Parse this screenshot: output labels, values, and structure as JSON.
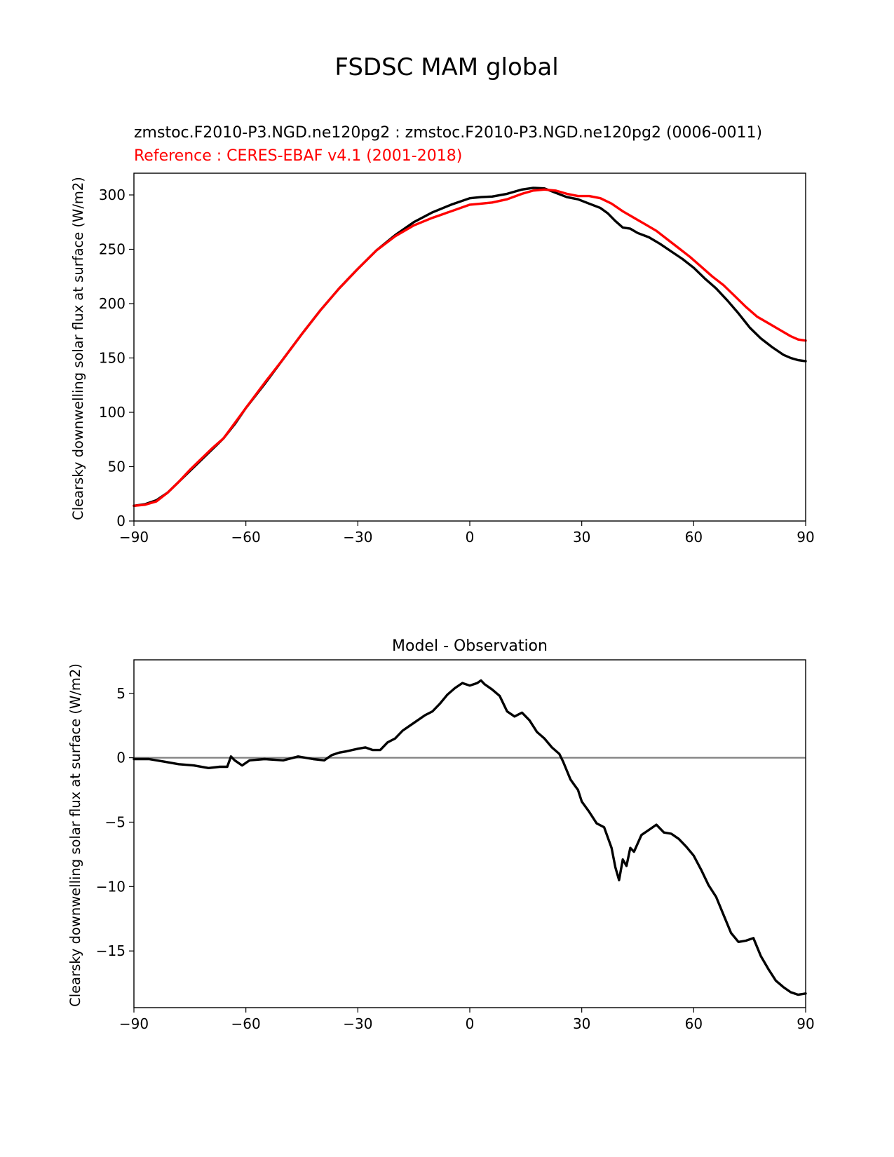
{
  "figure": {
    "title": "FSDSC MAM global"
  },
  "chart_data": [
    {
      "type": "line",
      "title_test": "zmstoc.F2010-P3.NGD.ne120pg2 : zmstoc.F2010-P3.NGD.ne120pg2 (0006-0011)",
      "title_reference": "Reference : CERES-EBAF v4.1 (2001-2018)",
      "xlabel": "",
      "ylabel": "Clearsky downwelling solar flux at surface (W/m2)",
      "xlim": [
        -90,
        90
      ],
      "ylim": [
        0,
        320
      ],
      "xticks": [
        -90,
        -60,
        -30,
        0,
        30,
        60,
        90
      ],
      "xtick_labels": [
        "−90",
        "−60",
        "−30",
        "0",
        "30",
        "60",
        "90"
      ],
      "yticks": [
        0,
        50,
        100,
        150,
        200,
        250,
        300
      ],
      "ytick_labels": [
        "0",
        "50",
        "100",
        "150",
        "200",
        "250",
        "300"
      ],
      "grid": false,
      "colors": {
        "test": "#000000",
        "reference": "#ff0000"
      },
      "series": [
        {
          "role": "test",
          "color": "#000000",
          "points": [
            [
              -90,
              14
            ],
            [
              -87,
              15.5
            ],
            [
              -84,
              19
            ],
            [
              -81,
              26
            ],
            [
              -78,
              36
            ],
            [
              -75,
              46
            ],
            [
              -72,
              56
            ],
            [
              -69,
              66
            ],
            [
              -66,
              76
            ],
            [
              -63,
              89
            ],
            [
              -60,
              104
            ],
            [
              -55,
              126
            ],
            [
              -50,
              149
            ],
            [
              -45,
              172
            ],
            [
              -40,
              194
            ],
            [
              -35,
              214
            ],
            [
              -30,
              232
            ],
            [
              -25,
              249
            ],
            [
              -20,
              263
            ],
            [
              -15,
              275
            ],
            [
              -10,
              284
            ],
            [
              -5,
              291
            ],
            [
              0,
              297
            ],
            [
              3,
              298
            ],
            [
              6,
              298.5
            ],
            [
              10,
              301
            ],
            [
              14,
              305
            ],
            [
              17,
              306.5
            ],
            [
              20,
              306
            ],
            [
              23,
              302
            ],
            [
              26,
              298
            ],
            [
              29,
              296
            ],
            [
              32,
              292
            ],
            [
              35,
              288
            ],
            [
              37,
              283
            ],
            [
              39,
              276
            ],
            [
              41,
              270
            ],
            [
              43,
              269
            ],
            [
              45,
              265
            ],
            [
              48,
              261
            ],
            [
              51,
              255
            ],
            [
              54,
              248
            ],
            [
              57,
              241
            ],
            [
              60,
              233
            ],
            [
              63,
              223
            ],
            [
              66,
              214
            ],
            [
              69,
              203
            ],
            [
              72,
              191
            ],
            [
              75,
              178
            ],
            [
              78,
              168
            ],
            [
              81,
              160
            ],
            [
              84,
              153
            ],
            [
              86,
              150
            ],
            [
              88,
              148
            ],
            [
              90,
              147
            ]
          ]
        },
        {
          "role": "reference",
          "color": "#ff0000",
          "points": [
            [
              -90,
              14
            ],
            [
              -87,
              15
            ],
            [
              -84,
              18
            ],
            [
              -81,
              26
            ],
            [
              -78,
              36
            ],
            [
              -75,
              47
            ],
            [
              -72,
              57
            ],
            [
              -69,
              67
            ],
            [
              -66,
              76
            ],
            [
              -63,
              90
            ],
            [
              -60,
              104
            ],
            [
              -55,
              127
            ],
            [
              -50,
              149
            ],
            [
              -45,
              172
            ],
            [
              -40,
              194
            ],
            [
              -35,
              214
            ],
            [
              -30,
              232
            ],
            [
              -25,
              249
            ],
            [
              -20,
              262
            ],
            [
              -15,
              272
            ],
            [
              -10,
              279
            ],
            [
              -5,
              285
            ],
            [
              0,
              291
            ],
            [
              3,
              292
            ],
            [
              6,
              293
            ],
            [
              10,
              296
            ],
            [
              14,
              301
            ],
            [
              17,
              304
            ],
            [
              20,
              305
            ],
            [
              23,
              304
            ],
            [
              26,
              301
            ],
            [
              29,
              299
            ],
            [
              32,
              299
            ],
            [
              35,
              297
            ],
            [
              38,
              292
            ],
            [
              41,
              285
            ],
            [
              44,
              279
            ],
            [
              47,
              273
            ],
            [
              50,
              267
            ],
            [
              53,
              259
            ],
            [
              56,
              251
            ],
            [
              59,
              243
            ],
            [
              62,
              234
            ],
            [
              65,
              225
            ],
            [
              68,
              217
            ],
            [
              71,
              207
            ],
            [
              74,
              197
            ],
            [
              77,
              188
            ],
            [
              80,
              182
            ],
            [
              83,
              176
            ],
            [
              86,
              170
            ],
            [
              88,
              167
            ],
            [
              90,
              166
            ]
          ]
        }
      ]
    },
    {
      "type": "line",
      "title": "Model - Observation",
      "xlabel": "",
      "ylabel": "Clearsky downwelling solar flux at surface (W/m2)",
      "xlim": [
        -90,
        90
      ],
      "ylim": [
        -19.4,
        7.6
      ],
      "xticks": [
        -90,
        -60,
        -30,
        0,
        30,
        60,
        90
      ],
      "xtick_labels": [
        "−90",
        "−60",
        "−30",
        "0",
        "30",
        "60",
        "90"
      ],
      "yticks": [
        5,
        0,
        -5,
        -10,
        -15
      ],
      "ytick_labels": [
        "5",
        "0",
        "−5",
        "−10",
        "−15"
      ],
      "grid": false,
      "zero_line_color": "#808080",
      "series": [
        {
          "role": "difference",
          "color": "#000000",
          "points": [
            [
              -90,
              -0.1
            ],
            [
              -86,
              -0.1
            ],
            [
              -82,
              -0.3
            ],
            [
              -78,
              -0.5
            ],
            [
              -74,
              -0.6
            ],
            [
              -70,
              -0.8
            ],
            [
              -67,
              -0.7
            ],
            [
              -65,
              -0.7
            ],
            [
              -64,
              0.1
            ],
            [
              -63,
              -0.2
            ],
            [
              -61,
              -0.6
            ],
            [
              -59,
              -0.2
            ],
            [
              -55,
              -0.1
            ],
            [
              -50,
              -0.2
            ],
            [
              -46,
              0.1
            ],
            [
              -42,
              -0.1
            ],
            [
              -39,
              -0.2
            ],
            [
              -37,
              0.2
            ],
            [
              -35,
              0.4
            ],
            [
              -33,
              0.5
            ],
            [
              -30,
              0.7
            ],
            [
              -28,
              0.8
            ],
            [
              -26,
              0.6
            ],
            [
              -24,
              0.6
            ],
            [
              -22,
              1.2
            ],
            [
              -20,
              1.5
            ],
            [
              -18,
              2.1
            ],
            [
              -16,
              2.5
            ],
            [
              -14,
              2.9
            ],
            [
              -12,
              3.3
            ],
            [
              -10,
              3.6
            ],
            [
              -8,
              4.2
            ],
            [
              -6,
              4.9
            ],
            [
              -4,
              5.4
            ],
            [
              -2,
              5.8
            ],
            [
              0,
              5.6
            ],
            [
              2,
              5.8
            ],
            [
              3,
              6.0
            ],
            [
              4,
              5.7
            ],
            [
              6,
              5.3
            ],
            [
              8,
              4.8
            ],
            [
              10,
              3.6
            ],
            [
              12,
              3.2
            ],
            [
              14,
              3.5
            ],
            [
              16,
              2.9
            ],
            [
              18,
              2.0
            ],
            [
              20,
              1.5
            ],
            [
              22,
              0.8
            ],
            [
              24,
              0.3
            ],
            [
              25,
              -0.3
            ],
            [
              26,
              -1.0
            ],
            [
              27,
              -1.7
            ],
            [
              28,
              -2.1
            ],
            [
              29,
              -2.5
            ],
            [
              30,
              -3.4
            ],
            [
              32,
              -4.2
            ],
            [
              34,
              -5.1
            ],
            [
              36,
              -5.4
            ],
            [
              38,
              -7.0
            ],
            [
              39,
              -8.5
            ],
            [
              40,
              -9.5
            ],
            [
              41,
              -7.9
            ],
            [
              42,
              -8.4
            ],
            [
              43,
              -7.0
            ],
            [
              44,
              -7.3
            ],
            [
              46,
              -6.0
            ],
            [
              48,
              -5.6
            ],
            [
              50,
              -5.2
            ],
            [
              52,
              -5.8
            ],
            [
              54,
              -5.9
            ],
            [
              56,
              -6.3
            ],
            [
              58,
              -6.9
            ],
            [
              60,
              -7.6
            ],
            [
              62,
              -8.7
            ],
            [
              64,
              -9.9
            ],
            [
              66,
              -10.8
            ],
            [
              68,
              -12.2
            ],
            [
              70,
              -13.6
            ],
            [
              72,
              -14.3
            ],
            [
              74,
              -14.2
            ],
            [
              76,
              -14.0
            ],
            [
              78,
              -15.4
            ],
            [
              80,
              -16.4
            ],
            [
              82,
              -17.3
            ],
            [
              84,
              -17.8
            ],
            [
              86,
              -18.2
            ],
            [
              88,
              -18.4
            ],
            [
              90,
              -18.3
            ]
          ]
        }
      ]
    }
  ]
}
